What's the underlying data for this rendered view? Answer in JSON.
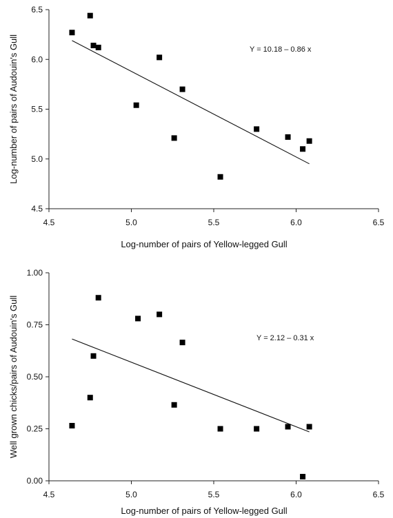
{
  "chart_data": [
    {
      "type": "scatter",
      "title": "",
      "xlabel": "Log-number of pairs of Yellow-legged Gull",
      "ylabel": "Log-number of pairs of Audouin's Gull",
      "xlim": [
        4.5,
        6.5
      ],
      "ylim": [
        4.5,
        6.5
      ],
      "xticks": [
        "4.5",
        "5.0",
        "5.5",
        "6.0",
        "6.5"
      ],
      "yticks": [
        "4.5",
        "5.0",
        "5.5",
        "6.0",
        "6.5"
      ],
      "grid": false,
      "annotation": "Y = 10.18 – 0.86 x",
      "regression": {
        "intercept": 10.18,
        "slope": -0.86,
        "x_from": 4.64,
        "x_to": 6.08
      },
      "points": [
        {
          "x": 4.64,
          "y": 6.27
        },
        {
          "x": 4.75,
          "y": 6.44
        },
        {
          "x": 4.77,
          "y": 6.14
        },
        {
          "x": 4.8,
          "y": 6.12
        },
        {
          "x": 5.03,
          "y": 5.54
        },
        {
          "x": 5.17,
          "y": 6.02
        },
        {
          "x": 5.26,
          "y": 5.21
        },
        {
          "x": 5.31,
          "y": 5.7
        },
        {
          "x": 5.54,
          "y": 4.82
        },
        {
          "x": 5.76,
          "y": 5.3
        },
        {
          "x": 5.95,
          "y": 5.22
        },
        {
          "x": 6.04,
          "y": 5.1
        },
        {
          "x": 6.08,
          "y": 5.18
        }
      ]
    },
    {
      "type": "scatter",
      "title": "",
      "xlabel": "Log-number of pairs of Yellow-legged Gull",
      "ylabel": "Well grown chicks/pairs of Audouin's Gull",
      "xlim": [
        4.5,
        6.5
      ],
      "ylim": [
        0,
        1
      ],
      "xticks": [
        "4.5",
        "5.0",
        "5.5",
        "6.0",
        "6.5"
      ],
      "yticks": [
        "0.00",
        "0.25",
        "0.50",
        "0.75",
        "1.00"
      ],
      "grid": false,
      "annotation": "Y = 2.12 – 0.31 x",
      "regression": {
        "intercept": 2.12,
        "slope": -0.31,
        "x_from": 4.64,
        "x_to": 6.08
      },
      "points": [
        {
          "x": 4.64,
          "y": 0.265
        },
        {
          "x": 4.75,
          "y": 0.4
        },
        {
          "x": 4.77,
          "y": 0.6
        },
        {
          "x": 4.8,
          "y": 0.88
        },
        {
          "x": 5.04,
          "y": 0.78
        },
        {
          "x": 5.17,
          "y": 0.8
        },
        {
          "x": 5.26,
          "y": 0.365
        },
        {
          "x": 5.31,
          "y": 0.665
        },
        {
          "x": 5.54,
          "y": 0.25
        },
        {
          "x": 5.76,
          "y": 0.25
        },
        {
          "x": 5.95,
          "y": 0.26
        },
        {
          "x": 6.04,
          "y": 0.02
        },
        {
          "x": 6.08,
          "y": 0.26
        }
      ]
    }
  ]
}
